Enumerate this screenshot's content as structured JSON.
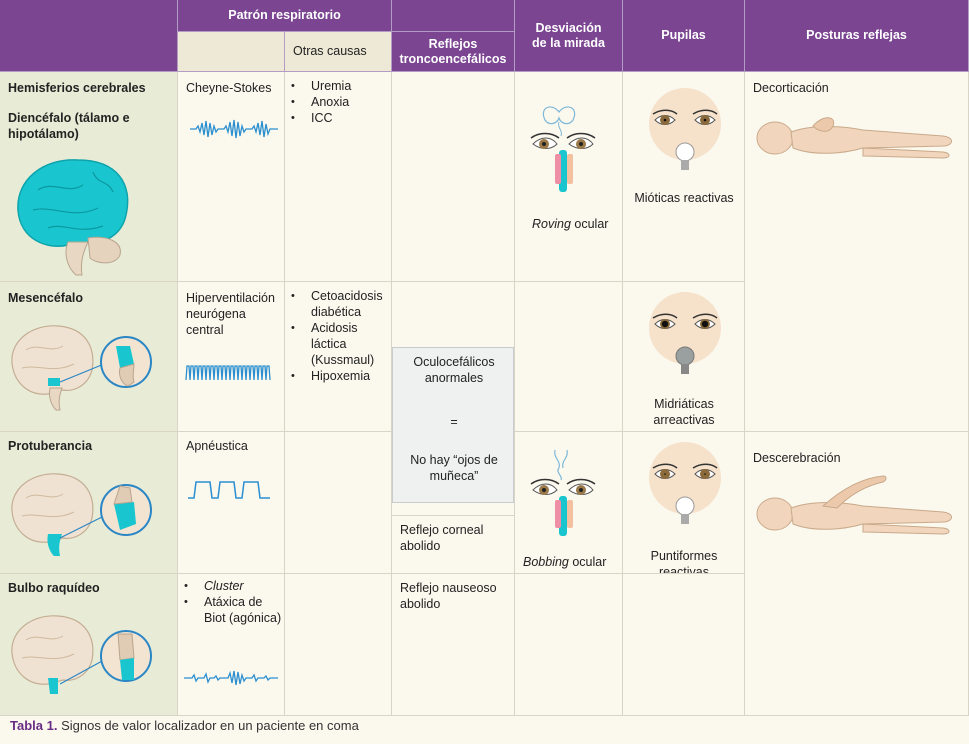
{
  "headers": {
    "patron_respiratorio": "Patrón respiratorio",
    "otras_causas": "Otras causas",
    "reflejos": "Reflejos troncoencefálicos",
    "desviacion": "Desviación de la mirada",
    "pupilas": "Pupilas",
    "posturas": "Posturas reflejas"
  },
  "rows": {
    "hemisferios": "Hemisferios cerebrales",
    "diencefalo": "Diencéfalo (tálamo e hipotálamo)",
    "mesencefalo": "Mesencéfalo",
    "protuberancia": "Protuberancia",
    "bulbo": "Bulbo raquídeo"
  },
  "patron": {
    "cheyne": "Cheyne-Stokes",
    "hiperventilacion": "Hiperventilación neurógena central",
    "apneustica": "Apnéustica",
    "cluster": "Cluster",
    "ataxica": "Atáxica de Biot (agónica)"
  },
  "otras": {
    "uremia": "Uremia",
    "anoxia": "Anoxia",
    "icc": "ICC",
    "cetoacidosis": "Cetoacidosis diabética",
    "acidosis": "Acidosis láctica (Kussmaul)",
    "hipoxemia": "Hipoxemia"
  },
  "reflejos": {
    "oculocefalicos": "Oculocefálicos anormales",
    "igual": "=",
    "no_hay": "No hay “ojos de muñeca”",
    "corneal": "Reflejo corneal abolido",
    "nauseoso": "Reflejo nauseoso abolido"
  },
  "mirada": {
    "roving_it": "Roving",
    "roving_rest": " ocular",
    "bobbing_it": "Bobbing",
    "bobbing_rest": " ocular"
  },
  "pupilas": {
    "mioticas": "Mióticas reactivas",
    "midriaticas": "Midriáticas arreactivas",
    "puntiformes": "Puntiformes reactivas"
  },
  "posturas": {
    "decorticacion": "Decorticación",
    "descerebracion": "Descerebración"
  },
  "caption": {
    "label": "Tabla 1.",
    "text": " Signos de valor localizador en un paciente en coma"
  },
  "colors": {
    "header_purple": "#7b4592",
    "first_col_green": "#e8ecd6",
    "brain_cyan": "#19c6cf",
    "skin": "#f1d6bd"
  }
}
